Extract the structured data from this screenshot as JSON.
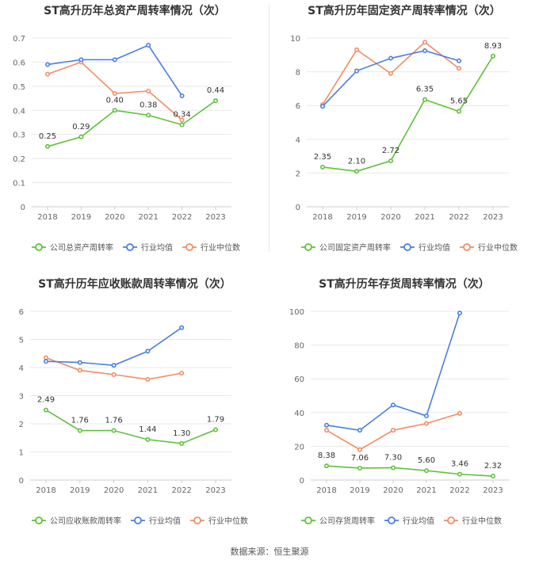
{
  "colors": {
    "company": "#5dc238",
    "avg": "#4a7fe0",
    "median": "#f28c64",
    "axis_text": "#666666",
    "grid": "#e8e8e8"
  },
  "legend": {
    "company_icon": "circle-line-marker",
    "avg_icon": "circle-line-marker",
    "median_icon": "circle-line-marker"
  },
  "source_text": "数据来源：恒生聚源",
  "chart_data": [
    {
      "type": "line",
      "title": "ST高升历年总资产周转率情况（次）",
      "categories": [
        "2018",
        "2019",
        "2020",
        "2021",
        "2022",
        "2023"
      ],
      "ylim": [
        0,
        0.7
      ],
      "yticks": [
        "0",
        "0.1",
        "0.2",
        "0.3",
        "0.4",
        "0.5",
        "0.6",
        "0.7"
      ],
      "legend_position": "bottom",
      "grid": true,
      "series": [
        {
          "name": "公司总资产周转率",
          "role": "company",
          "values": [
            0.25,
            0.29,
            0.4,
            0.38,
            0.34,
            0.44
          ],
          "labels": [
            "0.25",
            "0.29",
            "0.40",
            "0.38",
            "0.34",
            "0.44"
          ]
        },
        {
          "name": "行业均值",
          "role": "avg",
          "values": [
            0.59,
            0.61,
            0.61,
            0.67,
            0.46,
            null
          ]
        },
        {
          "name": "行业中位数",
          "role": "median",
          "values": [
            0.55,
            0.6,
            0.47,
            0.48,
            0.36,
            null
          ]
        }
      ]
    },
    {
      "type": "line",
      "title": "ST高升历年固定资产周转率情况（次）",
      "categories": [
        "2018",
        "2019",
        "2020",
        "2021",
        "2022",
        "2023"
      ],
      "ylim": [
        0,
        10
      ],
      "yticks": [
        "0",
        "2",
        "4",
        "6",
        "8",
        "10"
      ],
      "legend_position": "bottom",
      "grid": true,
      "series": [
        {
          "name": "公司固定资产周转率",
          "role": "company",
          "values": [
            2.35,
            2.1,
            2.72,
            6.35,
            5.65,
            8.93
          ],
          "labels": [
            "2.35",
            "2.10",
            "2.72",
            "6.35",
            "5.65",
            "8.93"
          ]
        },
        {
          "name": "行业均值",
          "role": "avg",
          "values": [
            5.95,
            8.05,
            8.8,
            9.25,
            8.65,
            null
          ]
        },
        {
          "name": "行业中位数",
          "role": "median",
          "values": [
            6.05,
            9.3,
            7.9,
            9.75,
            8.2,
            null
          ]
        }
      ]
    },
    {
      "type": "line",
      "title": "ST高升历年应收账款周转率情况（次）",
      "categories": [
        "2018",
        "2019",
        "2020",
        "2021",
        "2022",
        "2023"
      ],
      "ylim": [
        0,
        6
      ],
      "yticks": [
        "0",
        "1",
        "2",
        "3",
        "4",
        "5",
        "6"
      ],
      "legend_position": "bottom",
      "grid": true,
      "series": [
        {
          "name": "公司应收账款周转率",
          "role": "company",
          "values": [
            2.49,
            1.76,
            1.76,
            1.44,
            1.3,
            1.79
          ],
          "labels": [
            "2.49",
            "1.76",
            "1.76",
            "1.44",
            "1.30",
            "1.79"
          ]
        },
        {
          "name": "行业均值",
          "role": "avg",
          "values": [
            4.22,
            4.18,
            4.08,
            4.58,
            5.42,
            null
          ]
        },
        {
          "name": "行业中位数",
          "role": "median",
          "values": [
            4.35,
            3.9,
            3.75,
            3.58,
            3.8,
            null
          ]
        }
      ]
    },
    {
      "type": "line",
      "title": "ST高升历年存货周转率情况（次）",
      "categories": [
        "2018",
        "2019",
        "2020",
        "2021",
        "2022",
        "2023"
      ],
      "ylim": [
        0,
        100
      ],
      "yticks": [
        "0",
        "20",
        "40",
        "60",
        "80",
        "100"
      ],
      "legend_position": "bottom",
      "grid": true,
      "series": [
        {
          "name": "公司存货周转率",
          "role": "company",
          "values": [
            8.38,
            7.06,
            7.3,
            5.6,
            3.46,
            2.32
          ],
          "labels": [
            "8.38",
            "7.06",
            "7.30",
            "5.60",
            "3.46",
            "2.32"
          ]
        },
        {
          "name": "行业均值",
          "role": "avg",
          "values": [
            32.5,
            29.5,
            44.5,
            38,
            99,
            null
          ]
        },
        {
          "name": "行业中位数",
          "role": "median",
          "values": [
            29.5,
            18,
            29.5,
            33.5,
            39.5,
            null
          ]
        }
      ]
    }
  ]
}
